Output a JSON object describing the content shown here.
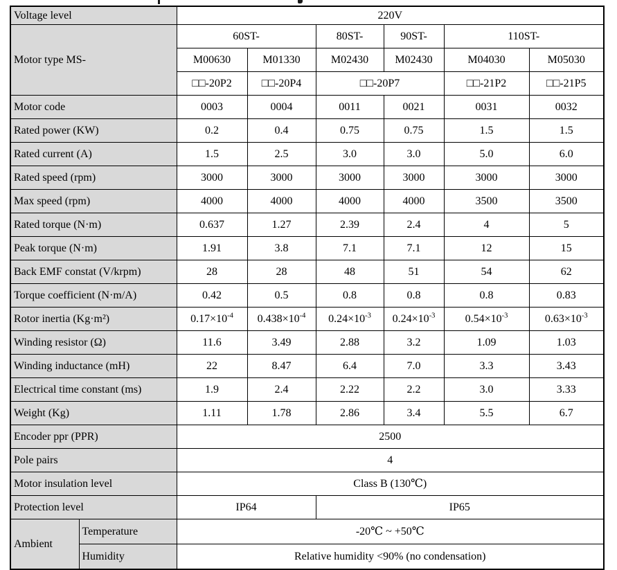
{
  "colors": {
    "label_background": "#d9d9d9",
    "border": "#000000",
    "text": "#000000",
    "page_background": "#ffffff"
  },
  "header": {
    "voltage_label": "Voltage level",
    "voltage_value": "220V",
    "motor_type_label": "Motor type MS-",
    "series": [
      {
        "label": "60ST-"
      },
      {
        "label": "80ST-"
      },
      {
        "label": "90ST-"
      },
      {
        "label": "110ST-"
      }
    ],
    "models": [
      "M00630",
      "M01330",
      "M02430",
      "M02430",
      "M04030",
      "M05030"
    ],
    "variants": [
      "□□-20P2",
      "□□-20P4",
      "□□-20P7",
      "□□-21P2",
      "□□-21P5"
    ]
  },
  "spec_rows": [
    {
      "label": "Motor code",
      "values": [
        "0003",
        "0004",
        "0011",
        "0021",
        "0031",
        "0032"
      ]
    },
    {
      "label": "Rated power (KW)",
      "values": [
        "0.2",
        "0.4",
        "0.75",
        "0.75",
        "1.5",
        "1.5"
      ]
    },
    {
      "label": "Rated current (A)",
      "values": [
        "1.5",
        "2.5",
        "3.0",
        "3.0",
        "5.0",
        "6.0"
      ]
    },
    {
      "label": "Rated speed (rpm)",
      "values": [
        "3000",
        "3000",
        "3000",
        "3000",
        "3000",
        "3000"
      ]
    },
    {
      "label": "Max speed (rpm)",
      "values": [
        "4000",
        "4000",
        "4000",
        "4000",
        "3500",
        "3500"
      ]
    },
    {
      "label": "Rated torque (N·m)",
      "values": [
        "0.637",
        "1.27",
        "2.39",
        "2.4",
        "4",
        "5"
      ]
    },
    {
      "label": "Peak torque (N·m)",
      "values": [
        "1.91",
        "3.8",
        "7.1",
        "7.1",
        "12",
        "15"
      ]
    },
    {
      "label": "Back EMF constat (V/krpm)",
      "values": [
        "28",
        "28",
        "48",
        "51",
        "54",
        "62"
      ]
    },
    {
      "label": "Torque coefficient (N·m/A)",
      "values": [
        "0.42",
        "0.5",
        "0.8",
        "0.8",
        "0.8",
        "0.83"
      ]
    },
    {
      "label": "Rotor inertia (Kg·m²)",
      "values": [
        "0.17×10^-4",
        "0.438×10^-4",
        "0.24×10^-3",
        "0.24×10^-3",
        "0.54×10^-3",
        "0.63×10^-3"
      ]
    },
    {
      "label": "Winding resistor (Ω)",
      "values": [
        "11.6",
        "3.49",
        "2.88",
        "3.2",
        "1.09",
        "1.03"
      ]
    },
    {
      "label": "Winding inductance (mH)",
      "values": [
        "22",
        "8.47",
        "6.4",
        "7.0",
        "3.3",
        "3.43"
      ]
    },
    {
      "label": "Electrical time constant (ms)",
      "values": [
        "1.9",
        "2.4",
        "2.22",
        "2.2",
        "3.0",
        "3.33"
      ]
    },
    {
      "label": "Weight (Kg)",
      "values": [
        "1.11",
        "1.78",
        "2.86",
        "3.4",
        "5.5",
        "6.7"
      ]
    }
  ],
  "full_rows": [
    {
      "label": "Encoder ppr (PPR)",
      "value": "2500"
    },
    {
      "label": "Pole pairs",
      "value": "4"
    },
    {
      "label": "Motor insulation level",
      "value": "Class B (130℃)"
    }
  ],
  "protection": {
    "label": "Protection level",
    "left": "IP64",
    "right": "IP65"
  },
  "ambient": {
    "label": "Ambient",
    "rows": [
      {
        "label": "Temperature",
        "value": "-20℃ ~ +50℃"
      },
      {
        "label": "Humidity",
        "value": "Relative humidity <90% (no condensation)"
      }
    ]
  }
}
